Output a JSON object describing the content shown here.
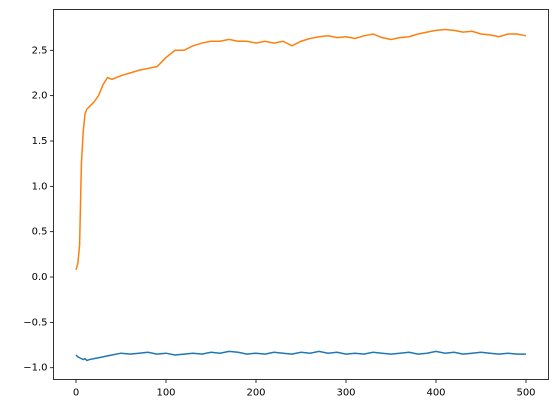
{
  "chart_data": {
    "type": "line",
    "x": [
      0,
      2,
      4,
      6,
      8,
      10,
      12,
      15,
      20,
      25,
      30,
      35,
      40,
      50,
      60,
      70,
      80,
      90,
      100,
      110,
      120,
      130,
      140,
      150,
      160,
      170,
      180,
      190,
      200,
      210,
      220,
      230,
      240,
      250,
      260,
      270,
      280,
      290,
      300,
      310,
      320,
      330,
      340,
      350,
      360,
      370,
      380,
      390,
      400,
      410,
      420,
      430,
      440,
      450,
      460,
      470,
      480,
      490,
      500
    ],
    "series": [
      {
        "color": "#1f77b4",
        "values": [
          -0.86,
          -0.88,
          -0.89,
          -0.9,
          -0.91,
          -0.9,
          -0.92,
          -0.91,
          -0.9,
          -0.89,
          -0.88,
          -0.87,
          -0.86,
          -0.84,
          -0.85,
          -0.84,
          -0.83,
          -0.85,
          -0.84,
          -0.86,
          -0.85,
          -0.84,
          -0.85,
          -0.83,
          -0.84,
          -0.82,
          -0.83,
          -0.85,
          -0.84,
          -0.85,
          -0.83,
          -0.84,
          -0.85,
          -0.83,
          -0.84,
          -0.82,
          -0.84,
          -0.83,
          -0.85,
          -0.84,
          -0.85,
          -0.83,
          -0.84,
          -0.85,
          -0.84,
          -0.83,
          -0.85,
          -0.84,
          -0.82,
          -0.84,
          -0.83,
          -0.85,
          -0.84,
          -0.83,
          -0.84,
          -0.85,
          -0.84,
          -0.85,
          -0.85
        ]
      },
      {
        "color": "#ff7f0e",
        "values": [
          0.08,
          0.15,
          0.35,
          1.25,
          1.6,
          1.8,
          1.85,
          1.88,
          1.93,
          2.0,
          2.12,
          2.2,
          2.18,
          2.22,
          2.25,
          2.28,
          2.3,
          2.32,
          2.42,
          2.5,
          2.5,
          2.55,
          2.58,
          2.6,
          2.6,
          2.62,
          2.6,
          2.6,
          2.58,
          2.6,
          2.58,
          2.6,
          2.55,
          2.6,
          2.63,
          2.65,
          2.66,
          2.64,
          2.65,
          2.63,
          2.66,
          2.68,
          2.64,
          2.62,
          2.64,
          2.65,
          2.68,
          2.7,
          2.72,
          2.73,
          2.72,
          2.7,
          2.71,
          2.68,
          2.67,
          2.65,
          2.68,
          2.68,
          2.66
        ]
      }
    ],
    "xlim": [
      -25,
      525
    ],
    "xticks": [
      0,
      100,
      200,
      300,
      400,
      500
    ],
    "ylim": [
      -1.13,
      2.95
    ],
    "yticks": [
      {
        "value": -1.0,
        "label": "−1.0"
      },
      {
        "value": -0.5,
        "label": "−0.5"
      },
      {
        "value": 0,
        "label": "0.0"
      },
      {
        "value": 0.5,
        "label": "0.5"
      },
      {
        "value": 1.0,
        "label": "1.0"
      },
      {
        "value": 1.5,
        "label": "1.5"
      },
      {
        "value": 2.0,
        "label": "2.0"
      },
      {
        "value": 2.5,
        "label": "2.5"
      }
    ]
  }
}
